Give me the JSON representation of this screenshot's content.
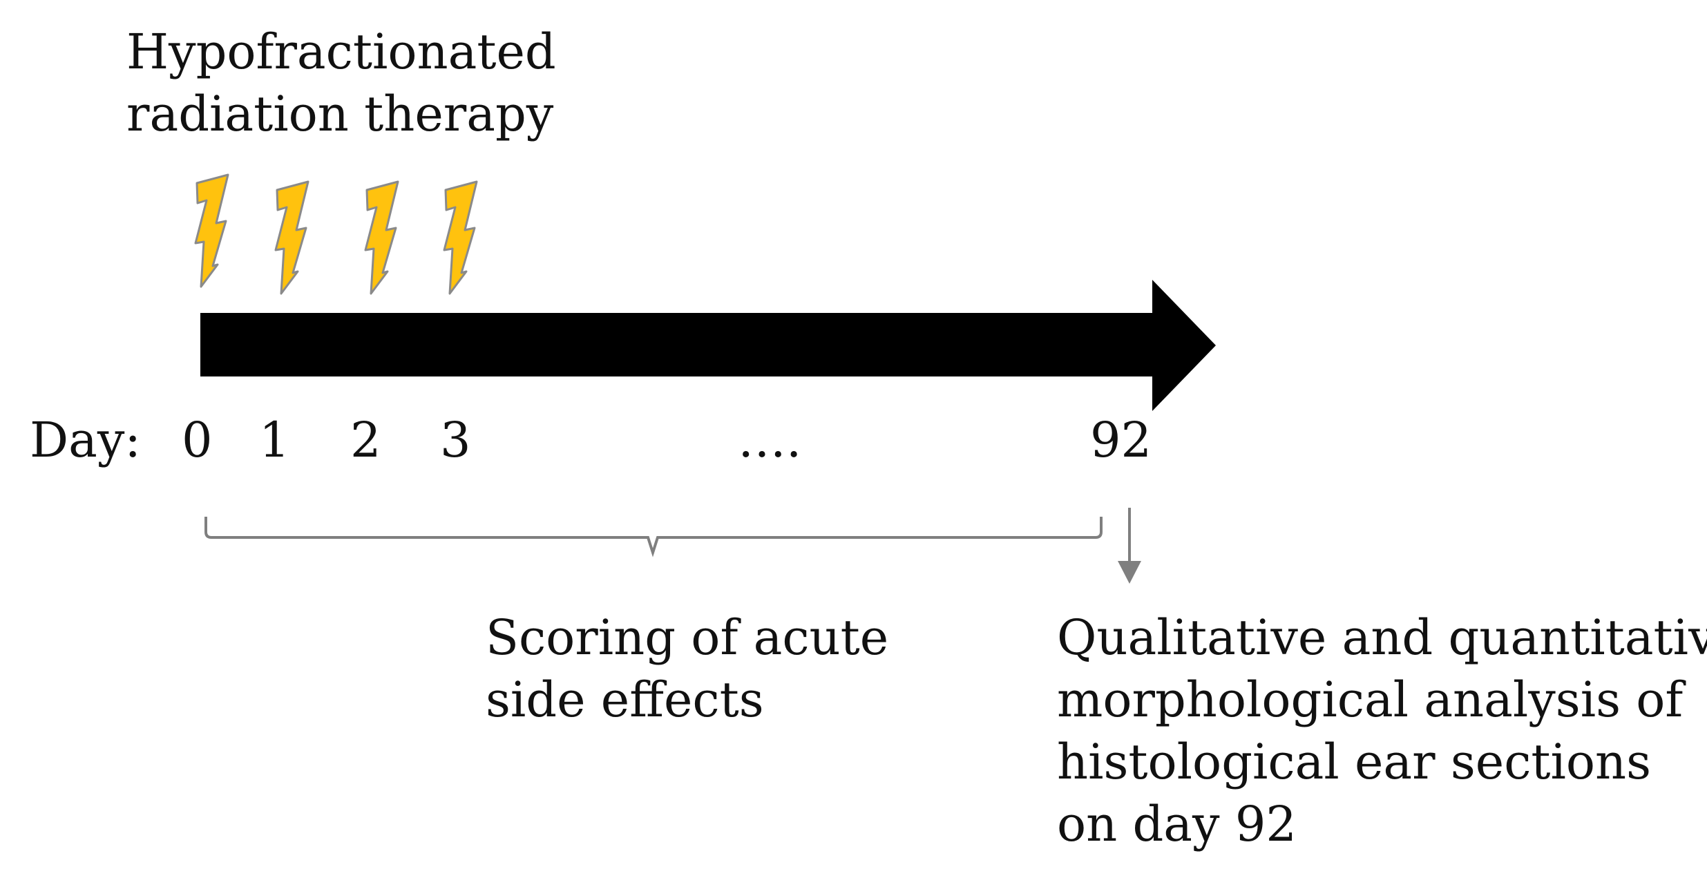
{
  "title": {
    "lines": [
      "Hypofractionated",
      "radiation therapy"
    ]
  },
  "timeline": {
    "day_prefix": "Day:",
    "days": [
      "0",
      "1",
      "2",
      "3"
    ],
    "ellipsis": "….",
    "end_day": "92",
    "irradiation_days": 4
  },
  "scoring": {
    "lines": [
      "Scoring of acute",
      "side effects"
    ]
  },
  "analysis": {
    "lines": [
      "Qualitative and quantitative",
      "morphological analysis of",
      "histological ear sections",
      "on day 92"
    ]
  },
  "colors": {
    "arrow": "#000000",
    "bolt_fill": "#FFC20E",
    "bolt_stroke": "#8a8a8a",
    "bracket": "#7f7f7f"
  }
}
